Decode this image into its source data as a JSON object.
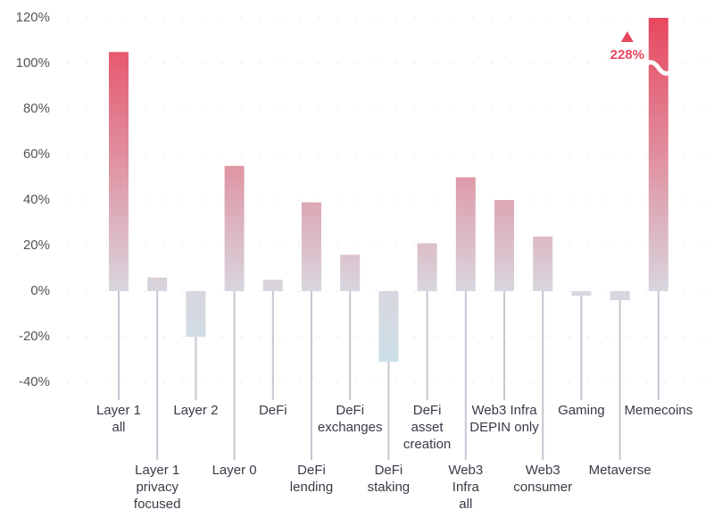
{
  "chart_data": {
    "type": "bar",
    "categories": [
      "Layer 1\nall",
      "Layer 1\nprivacy\nfocused",
      "Layer 2",
      "Layer 0",
      "DeFi",
      "DeFi\nlending",
      "DeFi\nexchanges",
      "DeFi\nstaking",
      "DeFi\nasset\ncreation",
      "Web3\nInfra\nall",
      "Web3 Infra\nDEPIN only",
      "Web3\nconsumer",
      "Gaming",
      "Metaverse",
      "Memecoins"
    ],
    "values": [
      105,
      6,
      -20,
      55,
      5,
      39,
      16,
      -31,
      21,
      50,
      40,
      24,
      -2,
      -4,
      228
    ],
    "value_labels": [
      null,
      null,
      null,
      null,
      null,
      null,
      null,
      null,
      null,
      null,
      null,
      null,
      null,
      null,
      "228%"
    ],
    "colors": {
      "top": "#e8475f",
      "zero": "#d8d6de",
      "bottom": "#c9e2ea",
      "annotation": "#e8475f"
    },
    "ylim": [
      -40,
      120
    ],
    "yticks": [
      {
        "value": -40,
        "label": "-40%"
      },
      {
        "value": -20,
        "label": "-20%"
      },
      {
        "value": 0,
        "label": "0%"
      },
      {
        "value": 20,
        "label": "20%"
      },
      {
        "value": 40,
        "label": "40%"
      },
      {
        "value": 60,
        "label": "60%"
      },
      {
        "value": 80,
        "label": "80%"
      },
      {
        "value": 100,
        "label": "100%"
      },
      {
        "value": 120,
        "label": "120%"
      }
    ],
    "grid": true
  }
}
